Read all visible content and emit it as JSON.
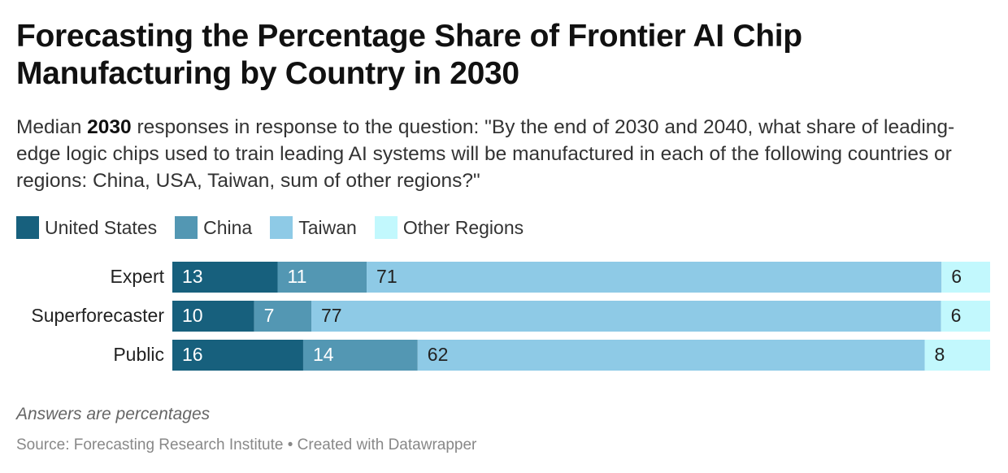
{
  "title": "Forecasting the Percentage Share of Frontier AI Chip Manufacturing by Country in 2030",
  "subtitle": {
    "prefix": "Median ",
    "bold": "2030",
    "suffix": " responses in response to the question: \"By the end of 2030 and 2040, what share of leading-edge logic chips used to train leading AI systems will be manufactured in each of the following countries or regions: China, USA, Taiwan, sum of other regions?\""
  },
  "legend": [
    {
      "label": "United States",
      "color": "#17607d"
    },
    {
      "label": "China",
      "color": "#5397b3"
    },
    {
      "label": "Taiwan",
      "color": "#8ecae6"
    },
    {
      "label": "Other Regions",
      "color": "#c2f8fd"
    }
  ],
  "chart_data": {
    "type": "bar",
    "orientation": "horizontal",
    "stacked": true,
    "categories": [
      "Expert",
      "Superforecaster",
      "Public"
    ],
    "series": [
      {
        "name": "United States",
        "color": "#17607d",
        "label_color": "#ffffff",
        "values": [
          13,
          10,
          16
        ]
      },
      {
        "name": "China",
        "color": "#5397b3",
        "label_color": "#ffffff",
        "values": [
          11,
          7,
          14
        ]
      },
      {
        "name": "Taiwan",
        "color": "#8ecae6",
        "label_color": "#222222",
        "values": [
          71,
          77,
          62
        ]
      },
      {
        "name": "Other Regions",
        "color": "#c2f8fd",
        "label_color": "#222222",
        "values": [
          6,
          6,
          8
        ]
      }
    ],
    "xlim": [
      0,
      100
    ],
    "units": "percent"
  },
  "note": "Answers are percentages",
  "source": "Source: Forecasting Research Institute • Created with Datawrapper"
}
